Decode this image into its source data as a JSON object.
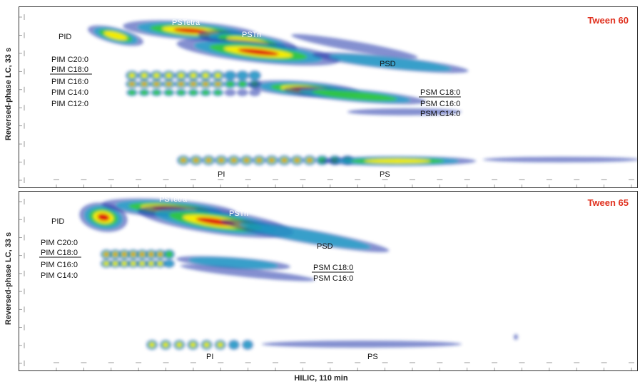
{
  "chart_data": [
    {
      "type": "heatmap",
      "title": "Tween 60",
      "xlabel": "HILIC, 110 min",
      "ylabel": "Reversed-phase LC, 33 s",
      "annotations": [
        "PID",
        "PSTetra",
        "PSTri",
        "PSD",
        "PIM C20:0",
        "PIM C18:0",
        "PIM C16:0",
        "PIM C14:0",
        "PIM C12:0",
        "PSM C18:0",
        "PSM C16:0",
        "PSM C14:0",
        "PI",
        "PS"
      ]
    },
    {
      "type": "heatmap",
      "title": "Tween 65",
      "xlabel": "HILIC, 110 min",
      "ylabel": "Reversed-phase LC, 33 s",
      "annotations": [
        "PID",
        "PSTetra",
        "PSTri",
        "PSD",
        "PIM C20:0",
        "PIM C18:0",
        "PIM C16:0",
        "PIM C14:0",
        "PSM C18:0",
        "PSM C16:0",
        "PI",
        "PS"
      ]
    }
  ],
  "colors": {
    "title": "#e0301e",
    "low": "#2233aa",
    "mid": "#33cc33",
    "high": "#ffee00",
    "peak": "#dd1111"
  }
}
